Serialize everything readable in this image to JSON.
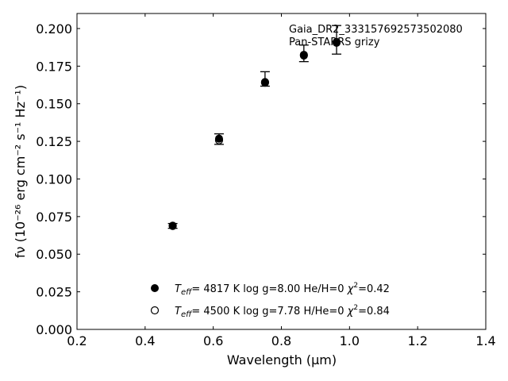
{
  "chart_data": {
    "type": "scatter",
    "xlabel": "Wavelength (μm)",
    "ylabel": "fν (10⁻²⁶ erg cm⁻² s⁻¹ Hz⁻¹)",
    "xlim": [
      0.2,
      1.4
    ],
    "ylim": [
      0.0,
      0.21
    ],
    "x_ticks": [
      "0.2",
      "0.4",
      "0.6",
      "0.8",
      "1.0",
      "1.2",
      "1.4"
    ],
    "y_ticks": [
      "0.000",
      "0.025",
      "0.050",
      "0.075",
      "0.100",
      "0.125",
      "0.150",
      "0.175",
      "0.200"
    ],
    "annotations": [
      "Gaia_DR2_3331576925735020​80",
      "Pan-STARRS grizy"
    ],
    "grid": false,
    "observed": {
      "x": [
        0.481,
        0.617,
        0.752,
        0.866,
        0.962
      ],
      "y": [
        0.0688,
        0.1265,
        0.1665,
        0.1835,
        0.1925
      ],
      "yerr": [
        0.0016,
        0.0035,
        0.0048,
        0.0055,
        0.0095
      ]
    },
    "series": [
      {
        "name": "Teff= 4817 K log g=8.00 He/H=0 χ²=0.42",
        "marker": "filled-circle",
        "x": [
          0.481,
          0.617,
          0.752,
          0.866,
          0.962
        ],
        "y": [
          0.069,
          0.1268,
          0.1645,
          0.182,
          0.1905
        ]
      },
      {
        "name": "Teff= 4500 K log g=7.78 H/He=0 χ²=0.84",
        "marker": "open-circle",
        "x": [
          0.481,
          0.617,
          0.752,
          0.866,
          0.962
        ],
        "y": [
          0.0688,
          0.1257,
          0.164,
          0.1825,
          0.191
        ]
      }
    ],
    "legend": {
      "placement": "lower-center",
      "entries": [
        {
          "teff": "4817 K",
          "logg": "log g=8.00",
          "comp": "He/H=0",
          "chi": "=0.42"
        },
        {
          "teff": "4500 K",
          "logg": "log g=7.78",
          "comp": "H/He=0",
          "chi": "=0.84"
        }
      ]
    },
    "colors": {
      "marker": "#000000",
      "axis": "#000000",
      "background": "#ffffff"
    }
  }
}
